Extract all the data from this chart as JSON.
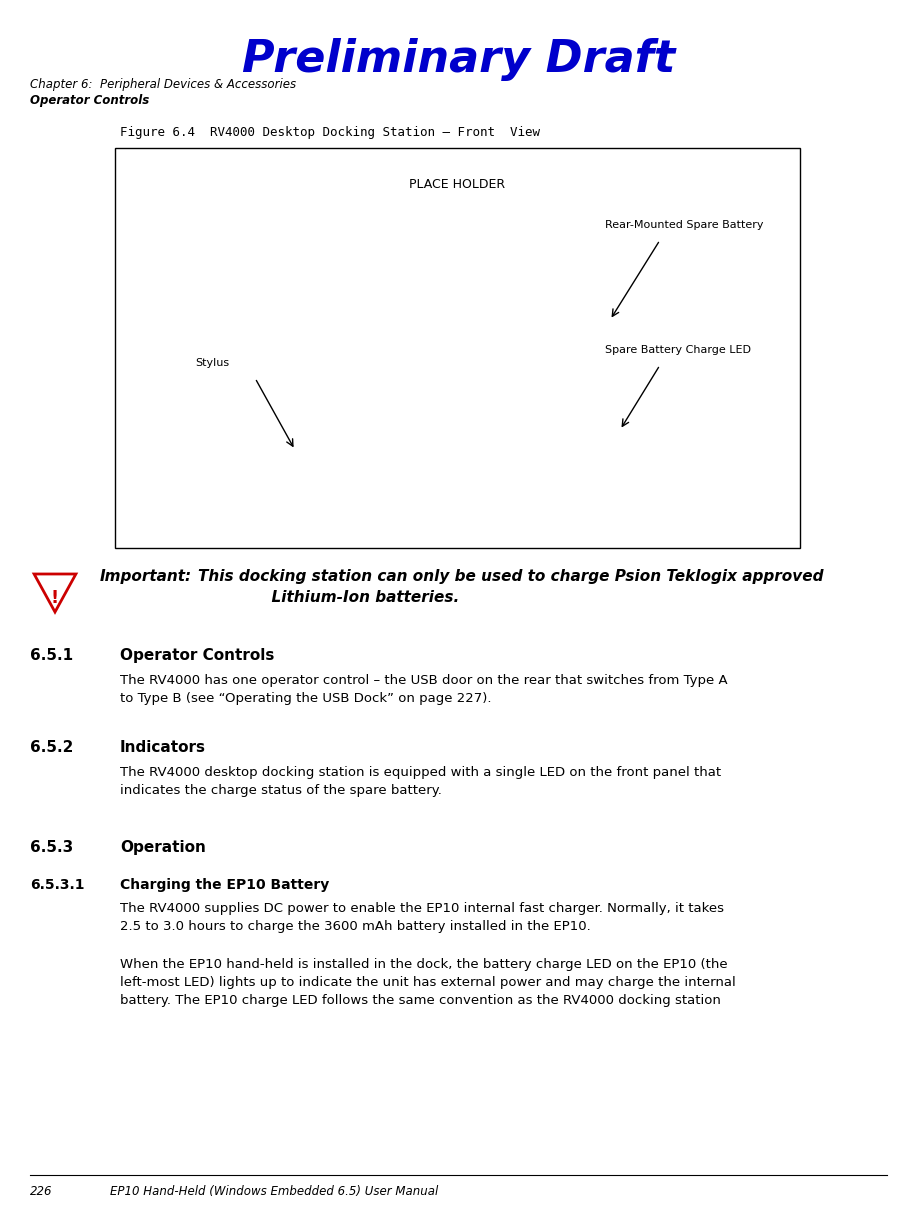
{
  "title": "Preliminary Draft",
  "title_color": "#0000CC",
  "title_fontsize": 30,
  "chapter_line1": "Chapter 6:  Peripheral Devices & Accessories",
  "chapter_line2": "Operator Controls",
  "figure_caption": "Figure 6.4  RV4000 Desktop Docking Station – Front  View",
  "placeholder_text": "PLACE HOLDER",
  "label_rear_battery": "Rear-Mounted Spare Battery",
  "label_spare_led": "Spare Battery Charge LED",
  "label_stylus": "Stylus",
  "important_label": "Important:",
  "important_body": "This docking station can only be used to charge Psion Teklogix approved\n              Lithium-Ion batteries.",
  "section_651_num": "6.5.1",
  "section_651_title": "Operator Controls",
  "section_651_body": "The RV4000 has one operator control – the USB door on the rear that switches from Type A\nto Type B (see “Operating the USB Dock” on page 227).",
  "section_652_num": "6.5.2",
  "section_652_title": "Indicators",
  "section_652_body": "The RV4000 desktop docking station is equipped with a single LED on the front panel that\nindicates the charge status of the spare battery.",
  "section_653_num": "6.5.3",
  "section_653_title": "Operation",
  "section_6531_num": "6.5.3.1",
  "section_6531_title": "Charging the EP10 Battery",
  "section_6531_body1": "The RV4000 supplies DC power to enable the EP10 internal fast charger. Normally, it takes\n2.5 to 3.0 hours to charge the 3600 mAh battery installed in the EP10.",
  "section_6531_body2": "When the EP10 hand-held is installed in the dock, the battery charge LED on the EP10 (the\nleft-most LED) lights up to indicate the unit has external power and may charge the internal\nbattery. The EP10 charge LED follows the same convention as the RV4000 docking station",
  "footer_page": "226",
  "footer_text": "EP10 Hand-Held (Windows Embedded 6.5) User Manual",
  "bg_color": "#ffffff",
  "text_color": "#000000"
}
